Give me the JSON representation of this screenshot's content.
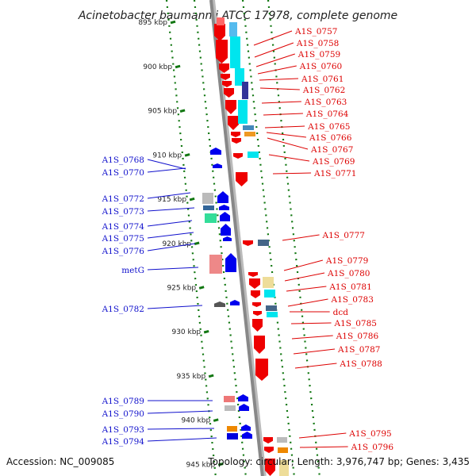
{
  "title": "Acinetobacter baumannii ATCC 17978, complete genome",
  "footer": {
    "accession": "Accession: NC_009085",
    "summary": "Topology: circular; Length: 3,976,747 bp; Genes: 3,435"
  },
  "colors": {
    "forward_label": "#1010cc",
    "reverse_label": "#dd0000",
    "forward_gene": "#0000ee",
    "reverse_gene": "#ee0000",
    "cyan_feature": "#00e5ee",
    "backbone": "#888888",
    "dots": "#117711"
  },
  "ticks": [
    {
      "label": "895 kbp",
      "kbp": 895
    },
    {
      "label": "900 kbp",
      "kbp": 900
    },
    {
      "label": "905 kbp",
      "kbp": 905
    },
    {
      "label": "910 kbp",
      "kbp": 910
    },
    {
      "label": "915 kbp",
      "kbp": 915
    },
    {
      "label": "920 kbp",
      "kbp": 920
    },
    {
      "label": "925 kbp",
      "kbp": 925
    },
    {
      "label": "930 kbp",
      "kbp": 930
    },
    {
      "label": "935 kbp",
      "kbp": 935
    },
    {
      "label": "940 kbp",
      "kbp": 940
    },
    {
      "label": "945 kbp",
      "kbp": 945
    }
  ],
  "left_labels": [
    "A1S_0768",
    "A1S_0770",
    "A1S_0772",
    "A1S_0773",
    "A1S_0774",
    "A1S_0775",
    "A1S_0776",
    "metG",
    "A1S_0782",
    "A1S_0789",
    "A1S_0790",
    "A1S_0793",
    "A1S_0794"
  ],
  "right_labels": [
    "A1S_0757",
    "A1S_0758",
    "A1S_0759",
    "A1S_0760",
    "A1S_0761",
    "A1S_0762",
    "A1S_0763",
    "A1S_0764",
    "A1S_0765",
    "A1S_0766",
    "A1S_0767",
    "A1S_0769",
    "A1S_0771",
    "A1S_0777",
    "A1S_0779",
    "A1S_0780",
    "A1S_0781",
    "A1S_0783",
    "dcd",
    "A1S_0785",
    "A1S_0786",
    "A1S_0787",
    "A1S_0788",
    "A1S_0795",
    "A1S_0796"
  ]
}
